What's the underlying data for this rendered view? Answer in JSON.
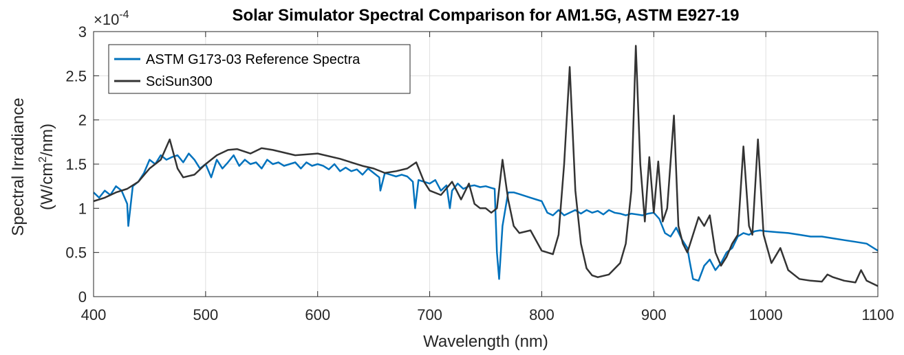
{
  "chart_data": {
    "type": "line",
    "title": "Solar Simulator Spectral Comparison for AM1.5G, ASTM E927-19",
    "xlabel": "Wavelength (nm)",
    "ylabel_line1": "Spectral Irradiance",
    "ylabel_line2_prefix": "(W/cm",
    "ylabel_line2_sup": "2",
    "ylabel_line2_suffix": "/nm)",
    "exponent_base": "×10",
    "exponent_power": "-4",
    "xlim": [
      400,
      1100
    ],
    "ylim": [
      0,
      3
    ],
    "xticks": [
      400,
      500,
      600,
      700,
      800,
      900,
      1000,
      1100
    ],
    "yticks": [
      0,
      0.5,
      1,
      1.5,
      2,
      2.5,
      3
    ],
    "ytick_labels": [
      "0",
      "0.5",
      "1",
      "1.5",
      "2",
      "2.5",
      "3"
    ],
    "grid": true,
    "legend_location": "top-left",
    "series": [
      {
        "name": "ASTM G173-03 Reference Spectra",
        "color": "#0072BD",
        "x": [
          400,
          405,
          410,
          415,
          420,
          425,
          430,
          431,
          435,
          440,
          445,
          450,
          455,
          460,
          465,
          470,
          475,
          480,
          485,
          490,
          495,
          500,
          505,
          510,
          515,
          520,
          525,
          530,
          535,
          540,
          545,
          550,
          555,
          560,
          565,
          570,
          575,
          580,
          585,
          590,
          595,
          600,
          605,
          610,
          615,
          620,
          625,
          630,
          635,
          640,
          645,
          650,
          655,
          656,
          660,
          665,
          670,
          675,
          680,
          685,
          687,
          690,
          695,
          700,
          705,
          710,
          715,
          718,
          720,
          725,
          730,
          735,
          740,
          745,
          750,
          755,
          758,
          760,
          762,
          765,
          770,
          775,
          780,
          785,
          790,
          795,
          800,
          805,
          810,
          815,
          820,
          825,
          830,
          835,
          840,
          845,
          850,
          855,
          860,
          865,
          870,
          875,
          880,
          885,
          890,
          895,
          900,
          905,
          910,
          915,
          920,
          925,
          930,
          932,
          935,
          940,
          945,
          950,
          955,
          960,
          965,
          970,
          975,
          980,
          985,
          990,
          995,
          1000,
          1010,
          1020,
          1030,
          1040,
          1050,
          1060,
          1070,
          1080,
          1090,
          1100
        ],
        "y": [
          1.18,
          1.12,
          1.2,
          1.15,
          1.25,
          1.2,
          1.05,
          0.8,
          1.25,
          1.3,
          1.4,
          1.55,
          1.5,
          1.6,
          1.55,
          1.58,
          1.6,
          1.52,
          1.62,
          1.55,
          1.45,
          1.5,
          1.35,
          1.55,
          1.45,
          1.52,
          1.6,
          1.48,
          1.55,
          1.5,
          1.52,
          1.45,
          1.55,
          1.5,
          1.52,
          1.48,
          1.5,
          1.52,
          1.45,
          1.52,
          1.48,
          1.5,
          1.48,
          1.44,
          1.5,
          1.42,
          1.46,
          1.42,
          1.44,
          1.38,
          1.45,
          1.4,
          1.35,
          1.2,
          1.4,
          1.38,
          1.36,
          1.38,
          1.36,
          1.3,
          1.0,
          1.32,
          1.3,
          1.28,
          1.32,
          1.2,
          1.26,
          1.0,
          1.2,
          1.28,
          1.22,
          1.25,
          1.26,
          1.24,
          1.25,
          1.23,
          1.22,
          0.5,
          0.2,
          0.8,
          1.18,
          1.18,
          1.16,
          1.14,
          1.12,
          1.1,
          1.08,
          0.95,
          0.92,
          0.98,
          0.92,
          0.95,
          0.98,
          0.94,
          0.98,
          0.95,
          0.97,
          0.93,
          0.98,
          0.95,
          0.94,
          0.92,
          0.94,
          0.93,
          0.92,
          0.94,
          0.95,
          0.88,
          0.72,
          0.68,
          0.78,
          0.65,
          0.55,
          0.4,
          0.2,
          0.18,
          0.35,
          0.42,
          0.3,
          0.38,
          0.5,
          0.55,
          0.68,
          0.72,
          0.7,
          0.74,
          0.75,
          0.74,
          0.73,
          0.72,
          0.7,
          0.68,
          0.68,
          0.66,
          0.64,
          0.62,
          0.6,
          0.52
        ]
      },
      {
        "name": "SciSun300",
        "color": "#333333",
        "x": [
          400,
          410,
          420,
          430,
          440,
          450,
          460,
          468,
          475,
          480,
          490,
          500,
          510,
          520,
          528,
          540,
          550,
          560,
          580,
          600,
          620,
          640,
          650,
          660,
          670,
          680,
          688,
          695,
          700,
          710,
          720,
          728,
          735,
          740,
          745,
          750,
          755,
          760,
          765,
          770,
          775,
          780,
          790,
          800,
          810,
          815,
          820,
          825,
          830,
          835,
          840,
          845,
          850,
          860,
          870,
          875,
          880,
          884,
          888,
          892,
          896,
          900,
          904,
          908,
          912,
          918,
          922,
          926,
          930,
          935,
          940,
          945,
          950,
          955,
          960,
          965,
          970,
          975,
          980,
          985,
          988,
          993,
          998,
          1005,
          1013,
          1020,
          1030,
          1040,
          1050,
          1055,
          1060,
          1070,
          1080,
          1085,
          1090,
          1095,
          1100
        ],
        "y": [
          1.08,
          1.12,
          1.18,
          1.22,
          1.3,
          1.45,
          1.55,
          1.78,
          1.45,
          1.35,
          1.38,
          1.5,
          1.6,
          1.66,
          1.67,
          1.62,
          1.68,
          1.66,
          1.6,
          1.62,
          1.56,
          1.48,
          1.45,
          1.4,
          1.42,
          1.45,
          1.52,
          1.3,
          1.2,
          1.15,
          1.3,
          1.1,
          1.28,
          1.05,
          1.0,
          1.0,
          0.95,
          1.0,
          1.55,
          1.1,
          0.8,
          0.72,
          0.75,
          0.52,
          0.48,
          0.7,
          1.5,
          2.6,
          1.2,
          0.6,
          0.32,
          0.24,
          0.22,
          0.25,
          0.38,
          0.6,
          1.2,
          2.84,
          1.5,
          0.85,
          1.58,
          0.95,
          1.53,
          0.85,
          1.0,
          2.05,
          0.8,
          0.6,
          0.5,
          0.7,
          0.9,
          0.8,
          0.92,
          0.5,
          0.35,
          0.45,
          0.6,
          0.7,
          1.7,
          0.8,
          0.7,
          1.78,
          0.7,
          0.38,
          0.55,
          0.3,
          0.2,
          0.18,
          0.17,
          0.25,
          0.22,
          0.18,
          0.16,
          0.3,
          0.18,
          0.15,
          0.12
        ]
      }
    ]
  }
}
